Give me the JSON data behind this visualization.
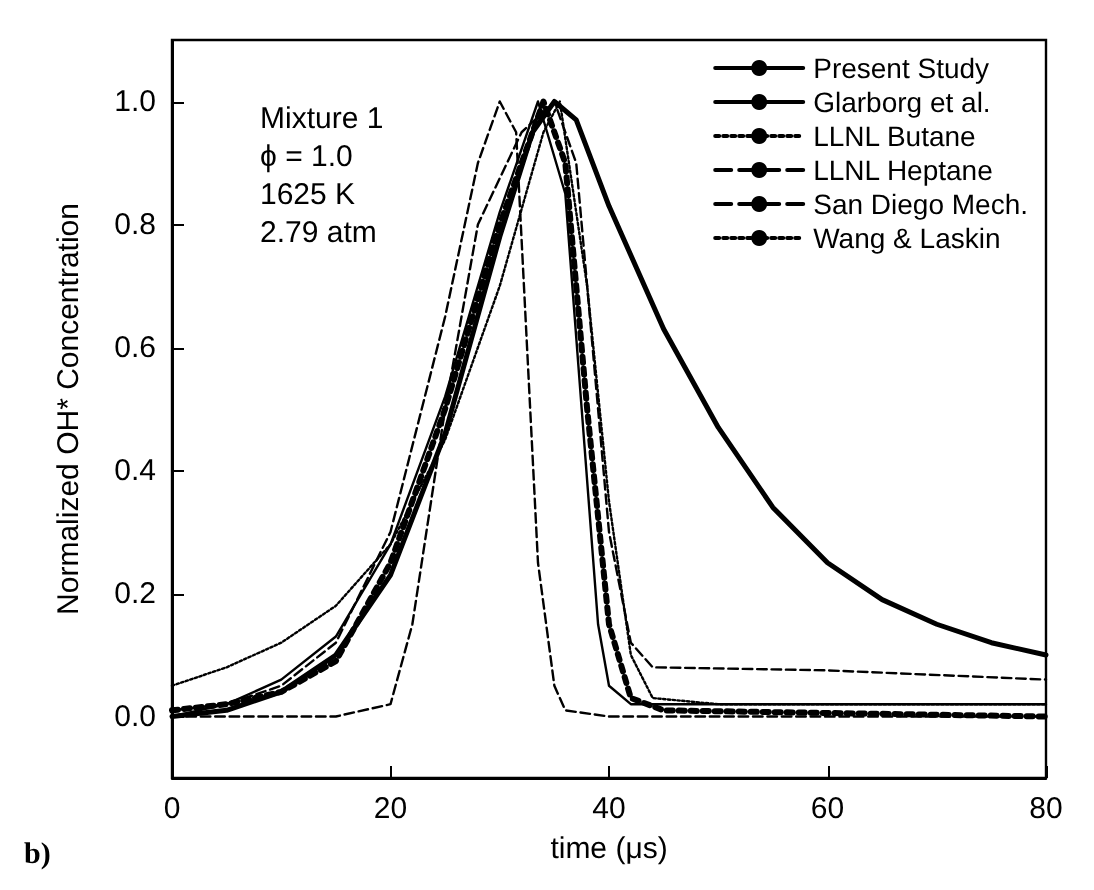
{
  "chart_data": {
    "type": "line",
    "xlabel": "time (μs)",
    "ylabel": "Normalized OH* Concentration",
    "xlim": [
      0,
      80
    ],
    "xticks": [
      0,
      20,
      40,
      60,
      80
    ],
    "ylim": [
      -0.1,
      1.1
    ],
    "yticks": [
      {
        "value": 0,
        "label": "0.0"
      },
      {
        "value": 0.2,
        "label": "0.2"
      },
      {
        "value": 0.4,
        "label": "0.4"
      },
      {
        "value": 0.6,
        "label": "0.6"
      },
      {
        "value": 0.8,
        "label": "0.8"
      },
      {
        "value": 1,
        "label": "1.0"
      }
    ],
    "grid": false,
    "legend": "top right",
    "marker": "none",
    "annotations": [
      "Mixture 1\nϕ = 1.0\n1625 K\n2.79 atm",
      "b)"
    ],
    "series": [
      {
        "name": "Present Study",
        "color": "#000000",
        "line_style": "solid",
        "x": [
          0,
          5,
          10,
          15,
          20,
          25,
          30,
          33,
          35,
          37,
          40,
          45,
          50,
          55,
          60,
          65,
          70,
          75,
          80
        ],
        "values": [
          0,
          0.01,
          0.04,
          0.1,
          0.23,
          0.46,
          0.78,
          0.95,
          1.0,
          0.97,
          0.83,
          0.63,
          0.47,
          0.34,
          0.25,
          0.19,
          0.15,
          0.12,
          0.1
        ]
      },
      {
        "name": "Glarborg et al.",
        "color": "#000000",
        "line_style": "solid",
        "x": [
          0,
          5,
          10,
          15,
          20,
          25,
          30,
          33.5,
          36,
          37.5,
          39,
          40,
          42,
          50,
          80
        ],
        "values": [
          0,
          0.02,
          0.06,
          0.13,
          0.28,
          0.52,
          0.82,
          1.0,
          0.85,
          0.5,
          0.15,
          0.05,
          0.02,
          0.02,
          0.02
        ]
      },
      {
        "name": "LLNL Butane",
        "color": "#000000",
        "line_style": "dotted",
        "x": [
          0,
          5,
          10,
          15,
          20,
          25,
          30,
          34,
          35.5,
          38,
          40,
          42,
          44,
          50,
          80
        ],
        "values": [
          0.05,
          0.08,
          0.12,
          0.18,
          0.28,
          0.45,
          0.7,
          0.95,
          1.0,
          0.7,
          0.35,
          0.1,
          0.03,
          0.02,
          0.02
        ]
      },
      {
        "name": "LLNL Heptane",
        "color": "#000000",
        "line_style": "dashed",
        "x": [
          0,
          5,
          10,
          15,
          20,
          25,
          28,
          30,
          31.5,
          32.5,
          33.5,
          35,
          36,
          40,
          80
        ],
        "values": [
          0.01,
          0.02,
          0.05,
          0.12,
          0.3,
          0.65,
          0.9,
          1.0,
          0.95,
          0.6,
          0.25,
          0.05,
          0.01,
          0,
          0
        ]
      },
      {
        "name": "San Diego Mech.",
        "color": "#000000",
        "line_style": "dashed",
        "x": [
          0,
          10,
          15,
          20,
          22,
          25,
          28,
          32,
          35,
          37,
          38.5,
          40,
          42,
          44,
          60,
          80
        ],
        "values": [
          0,
          0,
          0,
          0.02,
          0.15,
          0.5,
          0.8,
          0.95,
          1.0,
          0.9,
          0.6,
          0.3,
          0.12,
          0.08,
          0.075,
          0.06
        ]
      },
      {
        "name": "Wang & Laskin",
        "color": "#000000",
        "line_style": "dotted",
        "x": [
          0,
          5,
          10,
          15,
          20,
          25,
          30,
          34,
          36,
          38,
          40,
          42,
          45,
          80
        ],
        "values": [
          0.01,
          0.02,
          0.04,
          0.09,
          0.25,
          0.5,
          0.8,
          1.0,
          0.9,
          0.5,
          0.15,
          0.03,
          0.01,
          0
        ]
      }
    ]
  }
}
